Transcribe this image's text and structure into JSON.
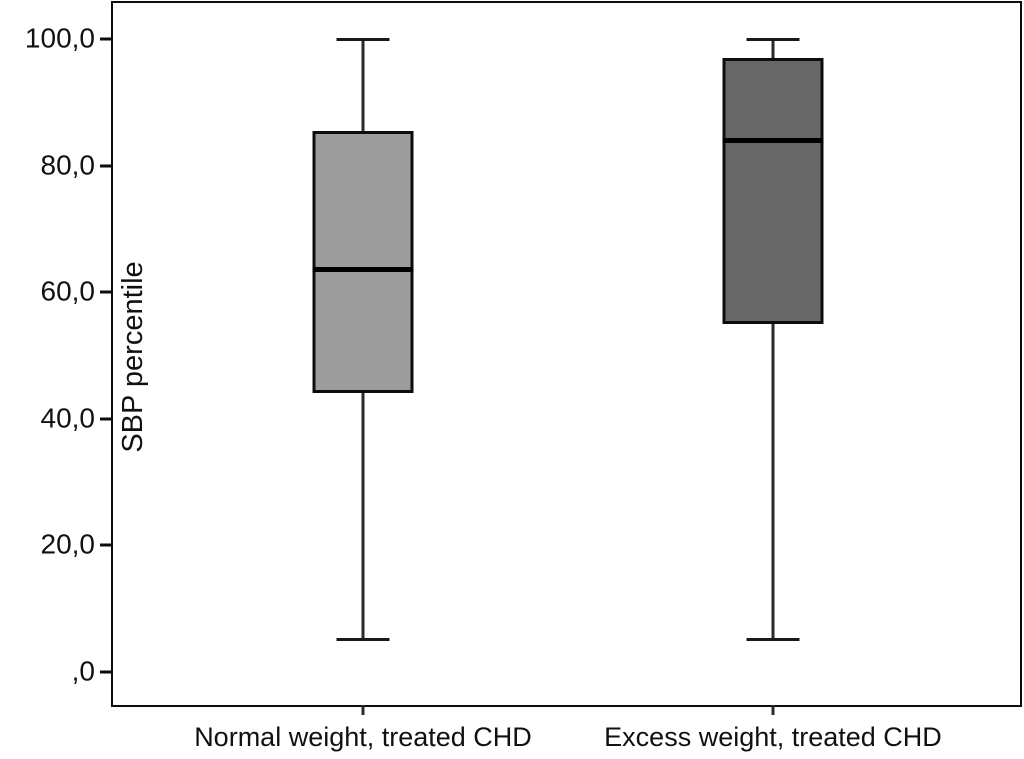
{
  "chart_data": {
    "type": "boxplot",
    "title": "",
    "xlabel": "",
    "ylabel": "SBP percentile",
    "ylim": [
      -5.5,
      105.7
    ],
    "grid": false,
    "legend": "none",
    "yticks": [
      {
        "value": 100,
        "label": "100,0"
      },
      {
        "value": 80,
        "label": "80,0"
      },
      {
        "value": 60,
        "label": "60,0"
      },
      {
        "value": 40,
        "label": "40,0"
      },
      {
        "value": 20,
        "label": "20,0"
      },
      {
        "value": 0,
        "label": ",0"
      }
    ],
    "categories": [
      "Normal weight, treated CHD",
      "Excess weight, treated CHD"
    ],
    "boxes": [
      {
        "category": "Normal weight, treated CHD",
        "whisker_min": 5,
        "q1": 44,
        "median": 63.5,
        "q3": 85.5,
        "whisker_max": 100,
        "fill_color": "#9d9d9d"
      },
      {
        "category": "Excess weight, treated CHD",
        "whisker_min": 5,
        "q1": 55,
        "median": 84,
        "q3": 97,
        "whisker_max": 100,
        "fill_color": "#676767"
      }
    ],
    "colors": {
      "frame": "#0d0d0d",
      "text": "#111111",
      "median": "#000000",
      "background": "#ffffff"
    }
  }
}
